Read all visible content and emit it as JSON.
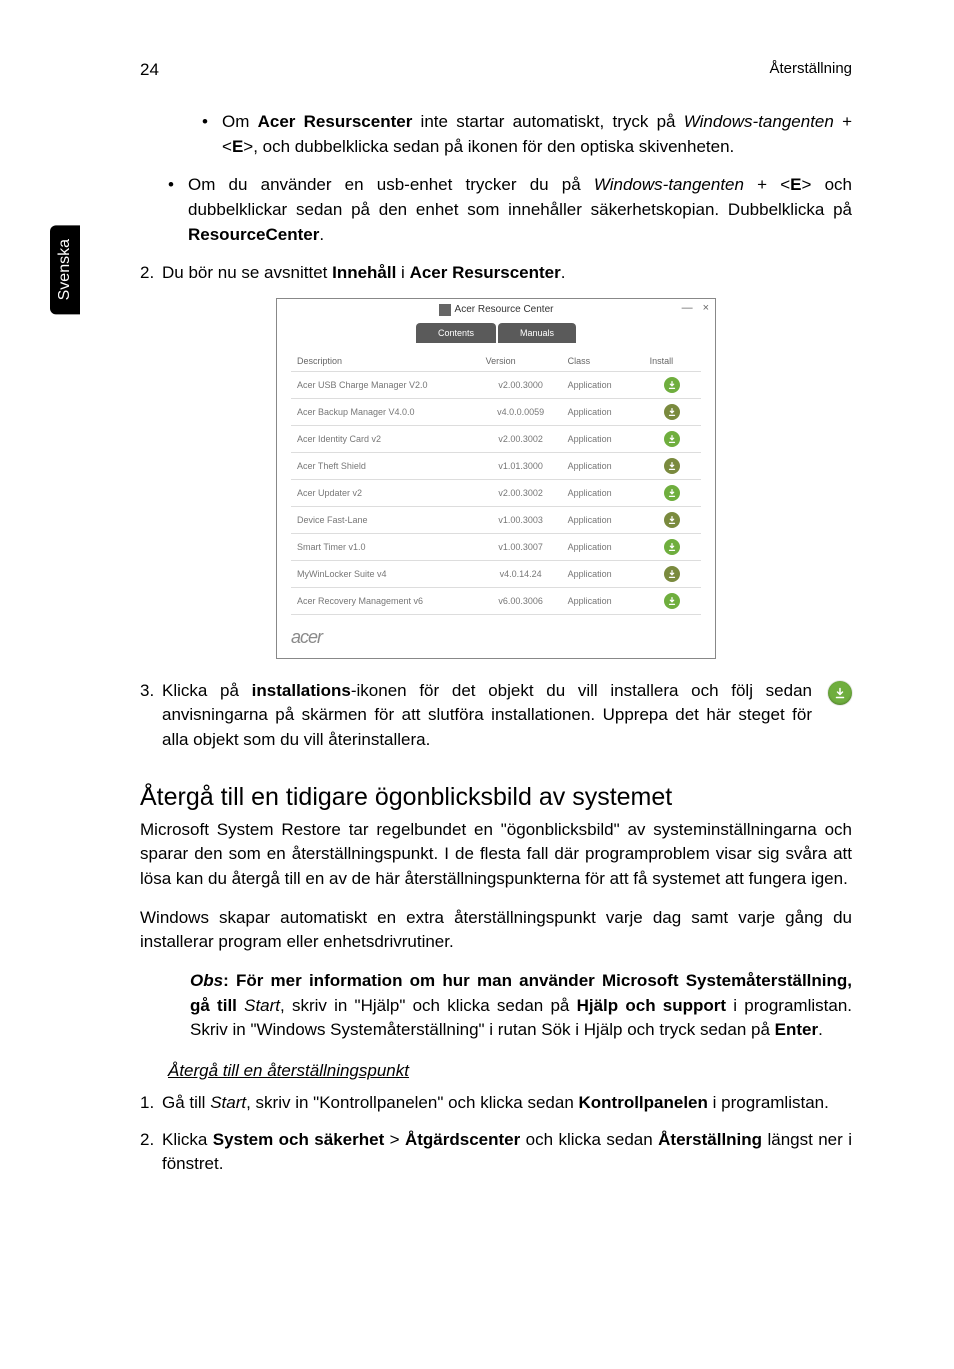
{
  "page": {
    "number": "24",
    "header_right": "Återställning",
    "side_tab": "Svenska"
  },
  "bullets": {
    "l2_1_a": "Om ",
    "l2_1_b": "Acer Resurscenter",
    "l2_1_c": " inte startar automatiskt, tryck på ",
    "l2_1_d": "Windows-tangenten",
    "l2_1_e": " + <",
    "l2_1_f": "E",
    "l2_1_g": ">, och dubbelklicka sedan på ikonen för den optiska skivenheten.",
    "l1_1_a": "Om du använder en usb-enhet trycker du på ",
    "l1_1_b": "Windows-tangenten",
    "l1_1_c": " + <",
    "l1_1_d": "E",
    "l1_1_e": "> och dubbelklickar sedan på den enhet som innehåller säkerhetskopian. Dubbelklicka på ",
    "l1_1_f": "ResourceCenter",
    "l1_1_g": "."
  },
  "step2": {
    "num": "2.",
    "a": "Du bör nu se avsnittet ",
    "b": "Innehåll",
    "c": " i ",
    "d": "Acer Resurscenter",
    "e": "."
  },
  "window": {
    "title": "Acer Resource Center",
    "minimize": "—",
    "close": "×",
    "tabs": {
      "contents": "Contents",
      "manuals": "Manuals"
    },
    "headers": {
      "desc": "Description",
      "ver": "Version",
      "cls": "Class",
      "inst": "Install"
    },
    "rows": [
      {
        "desc": "Acer USB Charge Manager V2.0",
        "ver": "v2.00.3000",
        "cls": "Application",
        "color": "#6fae3e"
      },
      {
        "desc": "Acer Backup Manager V4.0.0",
        "ver": "v4.0.0.0059",
        "cls": "Application",
        "color": "#7a8a3e"
      },
      {
        "desc": "Acer Identity Card v2",
        "ver": "v2.00.3002",
        "cls": "Application",
        "color": "#6fae3e"
      },
      {
        "desc": "Acer Theft Shield",
        "ver": "v1.01.3000",
        "cls": "Application",
        "color": "#7a8a3e"
      },
      {
        "desc": "Acer Updater v2",
        "ver": "v2.00.3002",
        "cls": "Application",
        "color": "#6fae3e"
      },
      {
        "desc": "Device Fast-Lane",
        "ver": "v1.00.3003",
        "cls": "Application",
        "color": "#7a8a3e"
      },
      {
        "desc": "Smart Timer v1.0",
        "ver": "v1.00.3007",
        "cls": "Application",
        "color": "#6fae3e"
      },
      {
        "desc": "MyWinLocker Suite v4",
        "ver": "v4.0.14.24",
        "cls": "Application",
        "color": "#7a8a3e"
      },
      {
        "desc": "Acer Recovery Management v6",
        "ver": "v6.00.3006",
        "cls": "Application",
        "color": "#6fae3e"
      }
    ],
    "brand": "acer"
  },
  "step3": {
    "num": "3.",
    "a": "Klicka på ",
    "b": "installations",
    "c": "-ikonen för det objekt du vill installera och följ sedan anvisningarna på skärmen för att slutföra installationen. Upprepa det här steget för alla objekt som du vill återinstallera."
  },
  "section_title": "Återgå till en tidigare ögonblicksbild av systemet",
  "para1": "Microsoft System Restore tar regelbundet en \"ögonblicksbild\" av systeminställningarna och sparar den som en återställningspunkt. I de flesta fall där programproblem visar sig svåra att lösa kan du återgå till en av de här återställningspunkterna för att få systemet att fungera igen.",
  "para2": "Windows skapar automatiskt en extra återställningspunkt varje dag samt varje gång du installerar program eller enhetsdrivrutiner.",
  "obs": {
    "a": "Obs",
    "b": ": För mer information om hur man använder Microsoft Systemåterställning, gå till ",
    "c": "Start",
    "d": ", skriv in \"Hjälp\" och klicka sedan på ",
    "e": "Hjälp och support",
    "f": " i programlistan. Skriv in \"Windows Systemåterställning\" i rutan Sök i Hjälp och tryck sedan på ",
    "g": "Enter",
    "h": "."
  },
  "sub_heading": "Återgå till en återställningspunkt",
  "num1": {
    "num": "1.",
    "a": "Gå till ",
    "b": "Start",
    "c": ", skriv in \"Kontrollpanelen\" och klicka sedan ",
    "d": "Kontrollpanelen",
    "e": " i programlistan."
  },
  "num2": {
    "num": "2.",
    "a": "Klicka ",
    "b": "System och säkerhet",
    "c": " > ",
    "d": "Åtgärdscenter",
    "e": " och klicka sedan ",
    "f": "Återställning",
    "g": " längst ner i fönstret."
  }
}
